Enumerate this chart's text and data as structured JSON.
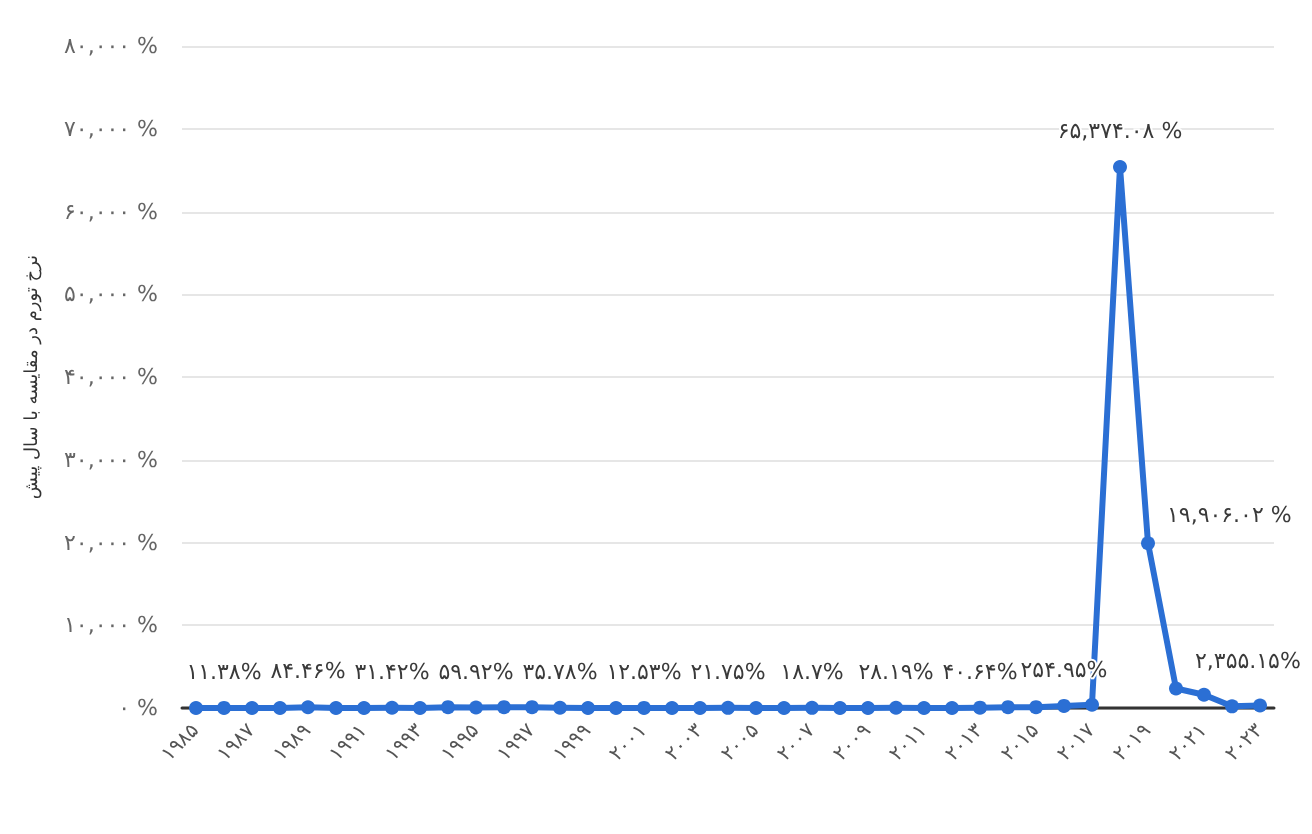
{
  "chart_data": {
    "type": "line",
    "ylabel": "نرخ تورم در مقایسه با سال پیش",
    "categories": [
      "۱۹۸۵",
      null,
      "۱۹۸۷",
      null,
      "۱۹۸۹",
      null,
      "۱۹۹۱",
      null,
      "۱۹۹۳",
      null,
      "۱۹۹۵",
      null,
      "۱۹۹۷",
      null,
      "۱۹۹۹",
      null,
      "۲۰۰۱",
      null,
      "۲۰۰۳",
      null,
      "۲۰۰۵",
      null,
      "۲۰۰۷",
      null,
      "۲۰۰۹",
      null,
      "۲۰۱۱",
      null,
      "۲۰۱۳",
      null,
      "۲۰۱۵",
      null,
      "۲۰۱۷",
      null,
      "۲۰۱۹",
      null,
      "۲۰۲۱",
      null,
      "۲۰۲۳"
    ],
    "values": [
      0,
      11.38,
      0,
      0,
      84.46,
      0,
      0,
      31.42,
      0,
      100,
      59.92,
      100,
      100,
      35.78,
      0,
      0,
      12.53,
      0,
      0,
      21.75,
      0,
      0,
      18.7,
      0,
      0,
      28.19,
      0,
      0,
      40.64,
      100,
      100,
      254.95,
      400,
      65374.08,
      19906.02,
      2355.15,
      1600,
      200,
      300
    ],
    "value_labels": [
      null,
      "۱۱.۳۸%",
      null,
      null,
      "۸۴.۴۶%",
      null,
      null,
      "۳۱.۴۲%",
      null,
      null,
      "۵۹.۹۲%",
      null,
      null,
      "۳۵.۷۸%",
      null,
      null,
      "۱۲.۵۳%",
      null,
      null,
      "۲۱.۷۵%",
      null,
      null,
      "۱۸.۷%",
      null,
      null,
      "۲۸.۱۹%",
      null,
      null,
      "۴۰.۶۴%",
      null,
      null,
      "۲۵۴.۹۵%",
      null,
      "۶۵,۳۷۴.۰۸ %",
      "۱۹,۹۰۶.۰۲ %",
      "۲,۳۵۵.۱۵%",
      null,
      null,
      null
    ],
    "color": "#2b6fd4",
    "ylim": [
      0,
      80000
    ],
    "yticks": [
      {
        "value": 0,
        "label": "۰ %"
      },
      {
        "value": 10000,
        "label": "۱۰,۰۰۰ %"
      },
      {
        "value": 20000,
        "label": "۲۰,۰۰۰ %"
      },
      {
        "value": 30000,
        "label": "۳۰,۰۰۰ %"
      },
      {
        "value": 40000,
        "label": "۴۰,۰۰۰ %"
      },
      {
        "value": 50000,
        "label": "۵۰,۰۰۰ %"
      },
      {
        "value": 60000,
        "label": "۶۰,۰۰۰ %"
      },
      {
        "value": 70000,
        "label": "۷۰,۰۰۰ %"
      },
      {
        "value": 80000,
        "label": "۸۰,۰۰۰ %"
      }
    ],
    "grid": "y",
    "marker": "circle",
    "line_style": "solid"
  }
}
